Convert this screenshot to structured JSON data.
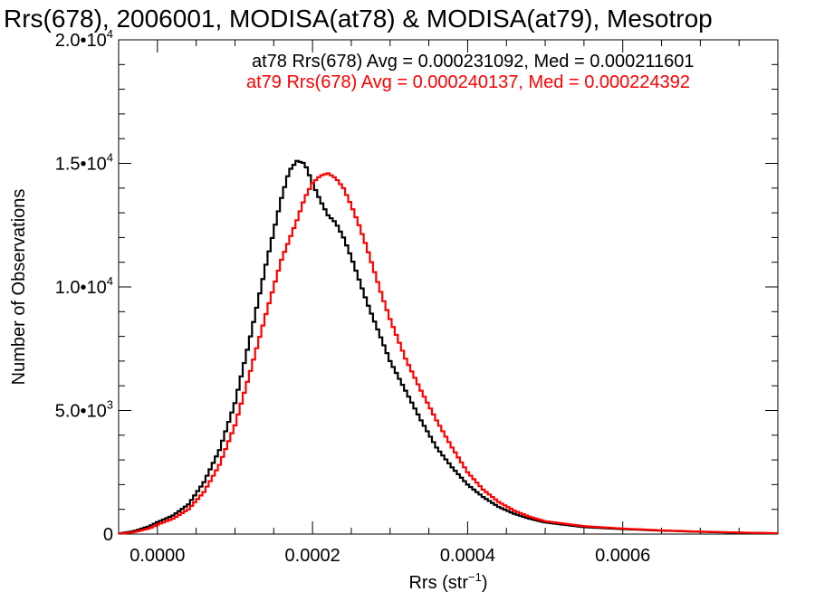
{
  "chart_data": {
    "type": "histogram",
    "title": "Rrs(678), 2006001, MODISA(at78) & MODISA(at79), Mesotrop",
    "xlabel_main": "Rrs (str",
    "xlabel_sup": "−1",
    "xlabel_tail": ")",
    "ylabel": "Number of Observations",
    "xlim": [
      -5e-05,
      0.0008
    ],
    "ylim": [
      0,
      20000
    ],
    "x_ticks": [
      0.0,
      0.0002,
      0.0004,
      0.0006
    ],
    "x_tick_labels": [
      "0.0000",
      "0.0002",
      "0.0004",
      "0.0006"
    ],
    "y_ticks": [
      0,
      5000,
      10000,
      15000,
      20000
    ],
    "y_tick_labels": [
      {
        "base": "0",
        "exp": ""
      },
      {
        "base": "5.0•10",
        "exp": "3"
      },
      {
        "base": "1.0•10",
        "exp": "4"
      },
      {
        "base": "1.5•10",
        "exp": "4"
      },
      {
        "base": "2.0•10",
        "exp": "4"
      }
    ],
    "annotations": [
      {
        "text": "at78 Rrs(678) Avg = 0.000231092, Med = 0.000211601",
        "color": "#000000"
      },
      {
        "text": "at79 Rrs(678) Avg = 0.000240137, Med = 0.000224392",
        "color": "#ff0000"
      }
    ],
    "series": [
      {
        "name": "at78",
        "color": "#000000",
        "points": [
          [
            -5e-05,
            20
          ],
          [
            -3e-05,
            120
          ],
          [
            -1e-05,
            320
          ],
          [
            0.0,
            480
          ],
          [
            2e-05,
            750
          ],
          [
            4e-05,
            1200
          ],
          [
            6e-05,
            2100
          ],
          [
            8e-05,
            3400
          ],
          [
            0.0001,
            5300
          ],
          [
            0.00012,
            8000
          ],
          [
            0.00014,
            10900
          ],
          [
            0.00016,
            13600
          ],
          [
            0.00017,
            14700
          ],
          [
            0.00018,
            15100
          ],
          [
            0.00019,
            15000
          ],
          [
            0.0002,
            14200
          ],
          [
            0.00021,
            13500
          ],
          [
            0.00022,
            12900
          ],
          [
            0.00023,
            12600
          ],
          [
            0.00024,
            12000
          ],
          [
            0.00025,
            11200
          ],
          [
            0.00026,
            10300
          ],
          [
            0.00027,
            9400
          ],
          [
            0.00028,
            8600
          ],
          [
            0.00029,
            7800
          ],
          [
            0.0003,
            7000
          ],
          [
            0.00032,
            5800
          ],
          [
            0.00034,
            4600
          ],
          [
            0.00036,
            3500
          ],
          [
            0.00038,
            2700
          ],
          [
            0.0004,
            2000
          ],
          [
            0.00042,
            1500
          ],
          [
            0.00044,
            1100
          ],
          [
            0.00046,
            820
          ],
          [
            0.00048,
            620
          ],
          [
            0.0005,
            470
          ],
          [
            0.00055,
            280
          ],
          [
            0.0006,
            200
          ],
          [
            0.00065,
            140
          ],
          [
            0.0007,
            90
          ],
          [
            0.00075,
            55
          ],
          [
            0.0008,
            30
          ]
        ]
      },
      {
        "name": "at79",
        "color": "#ff0000",
        "points": [
          [
            -5e-05,
            10
          ],
          [
            -3e-05,
            80
          ],
          [
            -1e-05,
            230
          ],
          [
            0.0,
            380
          ],
          [
            2e-05,
            620
          ],
          [
            4e-05,
            1000
          ],
          [
            6e-05,
            1700
          ],
          [
            8e-05,
            2800
          ],
          [
            0.0001,
            4400
          ],
          [
            0.00012,
            6600
          ],
          [
            0.00014,
            8900
          ],
          [
            0.00016,
            11100
          ],
          [
            0.00018,
            12700
          ],
          [
            0.00019,
            13600
          ],
          [
            0.0002,
            14200
          ],
          [
            0.00021,
            14500
          ],
          [
            0.00022,
            14600
          ],
          [
            0.00023,
            14400
          ],
          [
            0.00024,
            14000
          ],
          [
            0.00025,
            13300
          ],
          [
            0.00026,
            12500
          ],
          [
            0.00027,
            11600
          ],
          [
            0.00028,
            10600
          ],
          [
            0.00029,
            9600
          ],
          [
            0.0003,
            8700
          ],
          [
            0.00032,
            7100
          ],
          [
            0.00034,
            5800
          ],
          [
            0.00036,
            4600
          ],
          [
            0.00038,
            3500
          ],
          [
            0.0004,
            2500
          ],
          [
            0.00042,
            1800
          ],
          [
            0.00044,
            1300
          ],
          [
            0.00046,
            950
          ],
          [
            0.00048,
            700
          ],
          [
            0.0005,
            520
          ],
          [
            0.00055,
            320
          ],
          [
            0.0006,
            220
          ],
          [
            0.00065,
            150
          ],
          [
            0.0007,
            100
          ],
          [
            0.00075,
            60
          ],
          [
            0.0008,
            35
          ]
        ]
      }
    ]
  }
}
